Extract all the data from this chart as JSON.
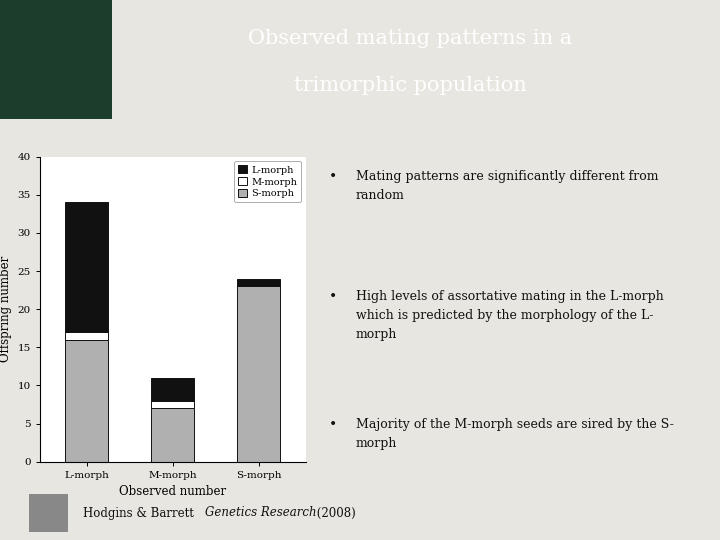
{
  "title_line1": "Observed mating patterns in a",
  "title_line2": "trimorphic population",
  "title_bg_color": "#2e6060",
  "title_text_color": "#ffffff",
  "slide_bg_color": "#e8e6e0",
  "chart_bg_color": "#ffffff",
  "categories": [
    "L-morph",
    "M-morph",
    "S-morph"
  ],
  "L_morph_values": [
    17,
    3,
    1
  ],
  "M_morph_values": [
    1,
    1,
    0
  ],
  "S_morph_values": [
    16,
    7,
    23
  ],
  "colors": {
    "L-morph": "#111111",
    "M-morph": "#ffffff",
    "S-morph": "#b0b0b0"
  },
  "bar_edge_color": "#111111",
  "ylim": [
    0,
    40
  ],
  "yticks": [
    0,
    5,
    10,
    15,
    20,
    25,
    30,
    35,
    40
  ],
  "ylabel": "Offspring number",
  "xlabel": "Observed number",
  "bullet_points": [
    "Mating patterns are significantly different from\nrandom",
    "High levels of assortative mating in the L-morph\nwhich is predicted by the morphology of the L-\nmorph",
    "Majority of the M-morph seeds are sired by the S-\nmorph"
  ],
  "footer_normal": "Hodgins & Barrett ",
  "footer_italic": "Genetics Research",
  "footer_end": " (2008)"
}
